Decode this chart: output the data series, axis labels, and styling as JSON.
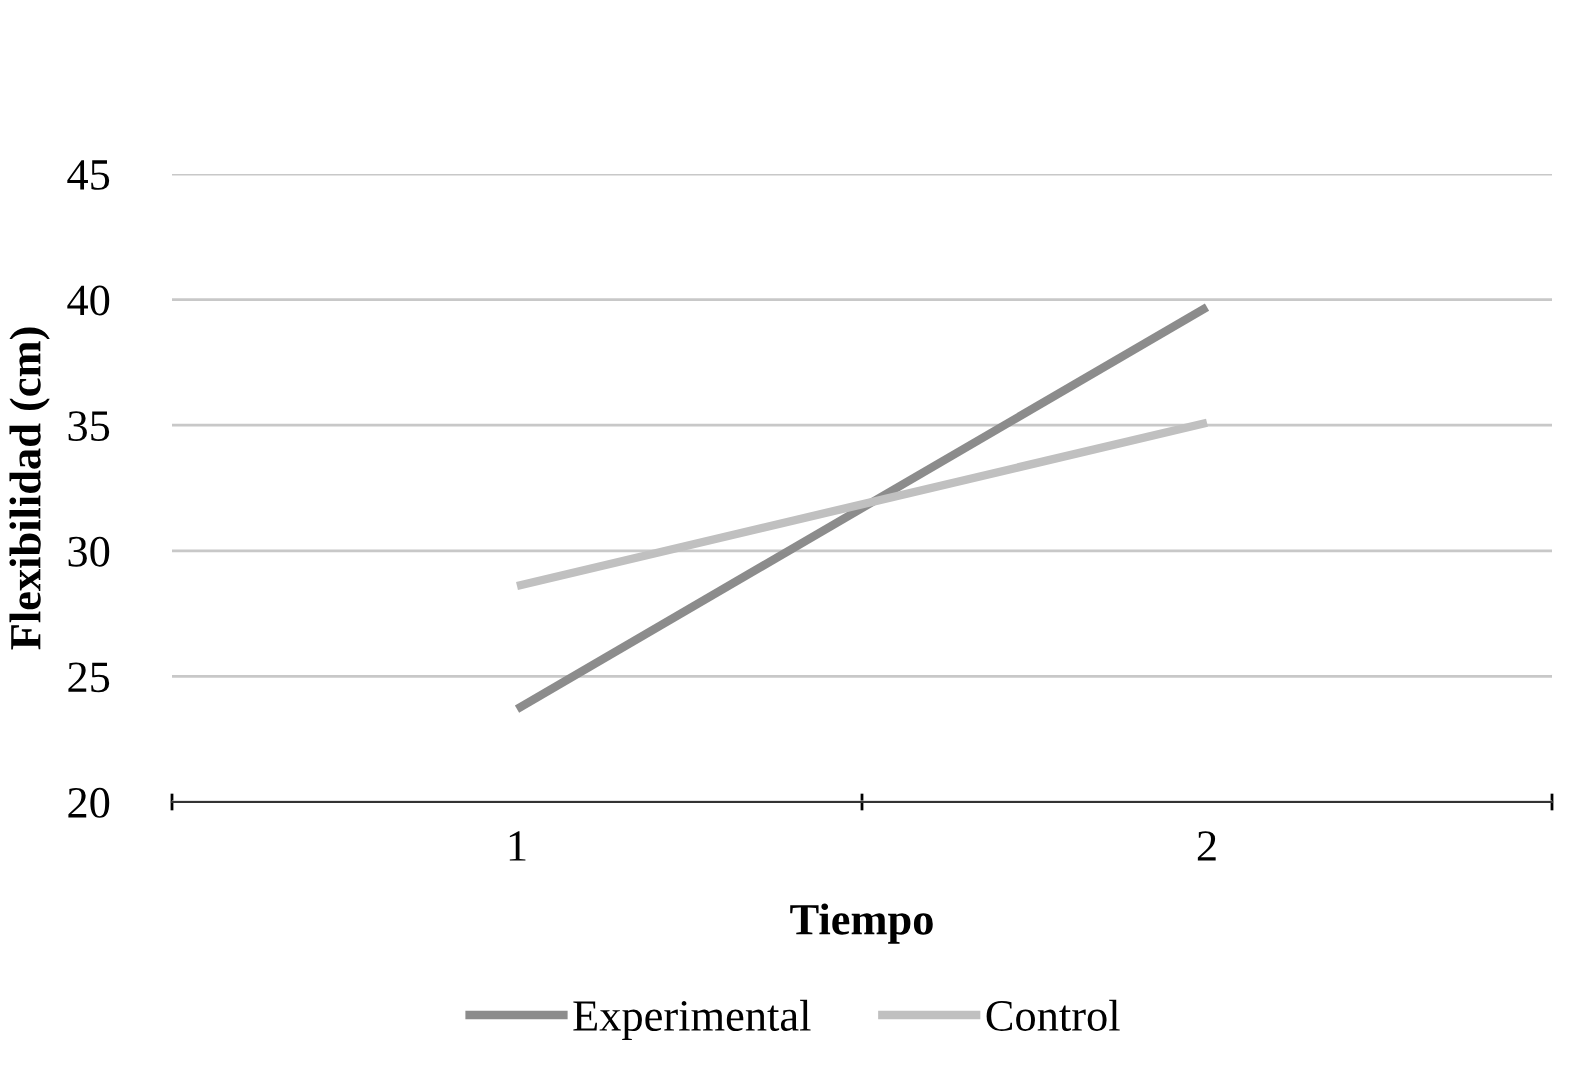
{
  "chart_data": {
    "type": "line",
    "xlabel": "Tiempo",
    "ylabel": "Flexibilidad (cm)",
    "categories": [
      "1",
      "2"
    ],
    "series": [
      {
        "name": "Experimental",
        "color": "#8c8c8c",
        "values": [
          23.7,
          39.7
        ]
      },
      {
        "name": "Control",
        "color": "#c0c0c0",
        "values": [
          28.6,
          35.1
        ]
      }
    ],
    "ylim": [
      20,
      45
    ],
    "yticks": [
      20,
      25,
      30,
      35,
      40,
      45
    ],
    "grid": "y",
    "legend": "bottom",
    "marker": "none",
    "line_style": "solid"
  }
}
